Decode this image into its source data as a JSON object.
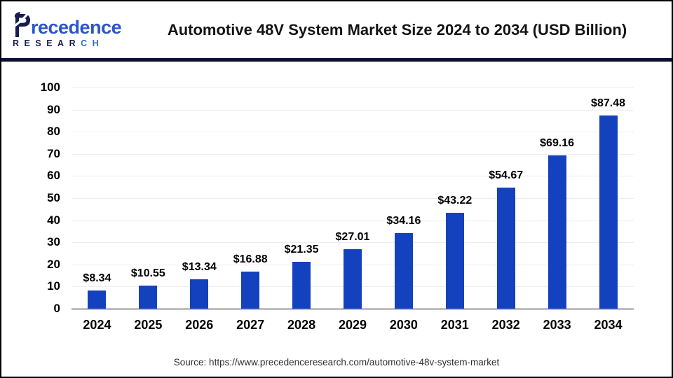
{
  "header": {
    "logo": {
      "brand_first_letter": "P",
      "brand_rest_dark": "recede",
      "brand_rest_light": "nce",
      "sub_dark": "RESEAR",
      "sub_light": "CH"
    },
    "title": "Automotive 48V System Market Size 2024 to 2034 (USD Billion)"
  },
  "chart_data": {
    "type": "bar",
    "title": "Automotive 48V System Market Size 2024 to 2034 (USD Billion)",
    "categories": [
      "2024",
      "2025",
      "2026",
      "2027",
      "2028",
      "2029",
      "2030",
      "2031",
      "2032",
      "2033",
      "2034"
    ],
    "values": [
      8.34,
      10.55,
      13.34,
      16.88,
      21.35,
      27.01,
      34.16,
      43.22,
      54.67,
      69.16,
      87.48
    ],
    "value_labels": [
      "$8.34",
      "$10.55",
      "$13.34",
      "$16.88",
      "$21.35",
      "$27.01",
      "$34.16",
      "$43.22",
      "$54.67",
      "$69.16",
      "$87.48"
    ],
    "xlabel": "",
    "ylabel": "",
    "ylim": [
      0,
      100
    ],
    "yticks": [
      0,
      10,
      20,
      30,
      40,
      50,
      60,
      70,
      80,
      90,
      100
    ],
    "grid": true,
    "legend_position": "none",
    "bar_color": "#1441bd"
  },
  "footer": {
    "source": "Source: https://www.precedenceresearch.com/automotive-48v-system-market"
  },
  "colors": {
    "bar": "#1441bd",
    "header_rule": "#0a0f35",
    "grid_line": "#ededed",
    "axis_line": "#bfbfbf",
    "logo_navy": "#161d4f",
    "logo_blue": "#2b55cc"
  }
}
